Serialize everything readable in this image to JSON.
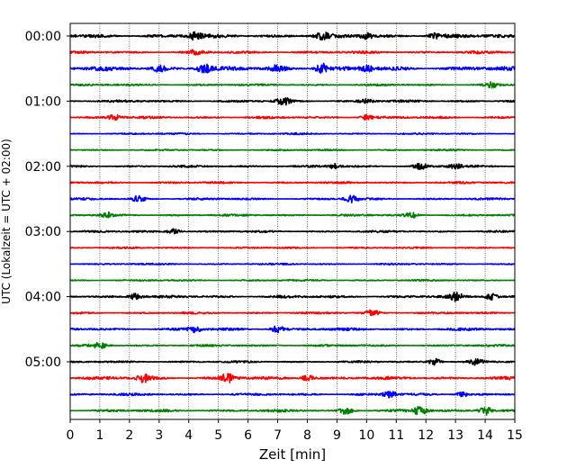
{
  "chart_data": {
    "type": "line",
    "title": "",
    "xlabel": "Zeit  [min]",
    "ylabel": "UTC (Lokalzeit = UTC + 02:00)",
    "xlim": [
      0,
      15
    ],
    "x_ticks": [
      0,
      1,
      2,
      3,
      4,
      5,
      6,
      7,
      8,
      9,
      10,
      11,
      12,
      13,
      14,
      15
    ],
    "x_tick_labels": [
      "0",
      "1",
      "2",
      "3",
      "4",
      "5",
      "6",
      "7",
      "8",
      "9",
      "10",
      "11",
      "12",
      "13",
      "14",
      "15"
    ],
    "y_tick_labels": [
      "00:00",
      "01:00",
      "02:00",
      "03:00",
      "04:00",
      "05:00"
    ],
    "y_tick_rows": [
      0,
      4,
      8,
      12,
      16,
      20
    ],
    "row_interval_minutes": 15,
    "grid_x": true,
    "color_cycle": [
      "#000000",
      "#ff0000",
      "#0000ff",
      "#008000"
    ],
    "rows": [
      {
        "start": "00:00",
        "color": "#000000",
        "base_amp": 0.22,
        "events": [
          [
            4.2,
            0.35
          ],
          [
            8.5,
            0.35
          ],
          [
            10.0,
            0.3
          ],
          [
            12.3,
            0.25
          ]
        ]
      },
      {
        "start": "00:15",
        "color": "#ff0000",
        "base_amp": 0.15,
        "events": [
          [
            4.2,
            0.2
          ]
        ]
      },
      {
        "start": "00:30",
        "color": "#0000ff",
        "base_amp": 0.25,
        "events": [
          [
            3.0,
            0.3
          ],
          [
            4.5,
            0.5
          ],
          [
            7.0,
            0.35
          ],
          [
            8.5,
            0.6
          ],
          [
            10.0,
            0.3
          ]
        ]
      },
      {
        "start": "00:45",
        "color": "#008000",
        "base_amp": 0.12,
        "events": [
          [
            14.2,
            0.25
          ]
        ]
      },
      {
        "start": "01:00",
        "color": "#000000",
        "base_amp": 0.14,
        "events": [
          [
            7.2,
            0.4
          ],
          [
            10.0,
            0.2
          ]
        ]
      },
      {
        "start": "01:15",
        "color": "#ff0000",
        "base_amp": 0.14,
        "events": [
          [
            1.5,
            0.3
          ],
          [
            10.0,
            0.25
          ]
        ]
      },
      {
        "start": "01:30",
        "color": "#0000ff",
        "base_amp": 0.1,
        "events": []
      },
      {
        "start": "01:45",
        "color": "#008000",
        "base_amp": 0.1,
        "events": []
      },
      {
        "start": "02:00",
        "color": "#000000",
        "base_amp": 0.13,
        "events": [
          [
            8.9,
            0.25
          ],
          [
            11.8,
            0.3
          ],
          [
            13.0,
            0.25
          ]
        ]
      },
      {
        "start": "02:15",
        "color": "#ff0000",
        "base_amp": 0.12,
        "events": []
      },
      {
        "start": "02:30",
        "color": "#0000ff",
        "base_amp": 0.12,
        "events": [
          [
            2.3,
            0.3
          ],
          [
            9.5,
            0.4
          ]
        ]
      },
      {
        "start": "02:45",
        "color": "#008000",
        "base_amp": 0.12,
        "events": [
          [
            1.3,
            0.25
          ],
          [
            11.5,
            0.3
          ]
        ]
      },
      {
        "start": "03:00",
        "color": "#000000",
        "base_amp": 0.12,
        "events": [
          [
            3.5,
            0.3
          ]
        ]
      },
      {
        "start": "03:15",
        "color": "#ff0000",
        "base_amp": 0.1,
        "events": []
      },
      {
        "start": "03:30",
        "color": "#0000ff",
        "base_amp": 0.1,
        "events": []
      },
      {
        "start": "03:45",
        "color": "#008000",
        "base_amp": 0.1,
        "events": []
      },
      {
        "start": "04:00",
        "color": "#000000",
        "base_amp": 0.16,
        "events": [
          [
            2.2,
            0.35
          ],
          [
            13.0,
            0.4
          ],
          [
            14.2,
            0.35
          ]
        ]
      },
      {
        "start": "04:15",
        "color": "#ff0000",
        "base_amp": 0.12,
        "events": [
          [
            10.2,
            0.3
          ]
        ]
      },
      {
        "start": "04:30",
        "color": "#0000ff",
        "base_amp": 0.16,
        "events": [
          [
            4.2,
            0.3
          ],
          [
            7.0,
            0.35
          ]
        ]
      },
      {
        "start": "04:45",
        "color": "#008000",
        "base_amp": 0.12,
        "events": [
          [
            1.0,
            0.3
          ]
        ]
      },
      {
        "start": "05:00",
        "color": "#000000",
        "base_amp": 0.12,
        "events": [
          [
            12.3,
            0.35
          ],
          [
            13.7,
            0.3
          ]
        ]
      },
      {
        "start": "05:15",
        "color": "#ff0000",
        "base_amp": 0.18,
        "events": [
          [
            2.5,
            0.45
          ],
          [
            5.3,
            0.45
          ],
          [
            8.0,
            0.3
          ]
        ]
      },
      {
        "start": "05:30",
        "color": "#0000ff",
        "base_amp": 0.14,
        "events": [
          [
            10.8,
            0.35
          ],
          [
            13.2,
            0.25
          ]
        ]
      },
      {
        "start": "05:45",
        "color": "#008000",
        "base_amp": 0.15,
        "events": [
          [
            9.3,
            0.35
          ],
          [
            11.8,
            0.45
          ],
          [
            14.0,
            0.5
          ]
        ]
      }
    ]
  }
}
